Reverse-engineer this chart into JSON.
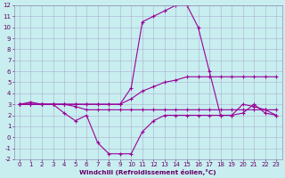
{
  "xlabel": "Windchill (Refroidissement éolien,°C)",
  "x": [
    0,
    1,
    2,
    3,
    4,
    5,
    6,
    7,
    8,
    9,
    10,
    11,
    12,
    13,
    14,
    15,
    16,
    17,
    18,
    19,
    20,
    21,
    22,
    23
  ],
  "y_peak": [
    3.0,
    3.2,
    3.0,
    3.0,
    3.0,
    3.0,
    3.0,
    3.0,
    3.0,
    3.0,
    4.5,
    10.5,
    11.0,
    11.5,
    12.0,
    12.0,
    10.0,
    6.0,
    2.0,
    2.0,
    2.2,
    3.0,
    2.2,
    2.0
  ],
  "y_rise": [
    3.0,
    3.0,
    3.0,
    3.0,
    3.0,
    3.0,
    3.0,
    3.0,
    3.0,
    3.0,
    3.5,
    4.2,
    4.6,
    5.0,
    5.2,
    5.5,
    5.5,
    5.5,
    5.5,
    5.5,
    5.5,
    5.5,
    5.5,
    5.5
  ],
  "y_dip": [
    3.0,
    3.0,
    3.0,
    3.0,
    2.2,
    1.5,
    2.0,
    -0.5,
    -1.5,
    -1.5,
    -1.5,
    0.5,
    1.5,
    2.0,
    2.0,
    2.0,
    2.0,
    2.0,
    2.0,
    2.0,
    3.0,
    2.8,
    2.5,
    2.0
  ],
  "y_flat": [
    3.0,
    3.0,
    3.0,
    3.0,
    3.0,
    2.8,
    2.5,
    2.5,
    2.5,
    2.5,
    2.5,
    2.5,
    2.5,
    2.5,
    2.5,
    2.5,
    2.5,
    2.5,
    2.5,
    2.5,
    2.5,
    2.5,
    2.5,
    2.5
  ],
  "line_color": "#990099",
  "bg_color": "#c8eef0",
  "grid_color": "#aaaacc",
  "ylim": [
    -2,
    12
  ],
  "xlim": [
    0,
    23
  ],
  "yticks": [
    -2,
    -1,
    0,
    1,
    2,
    3,
    4,
    5,
    6,
    7,
    8,
    9,
    10,
    11,
    12
  ],
  "xticks": [
    0,
    1,
    2,
    3,
    4,
    5,
    6,
    7,
    8,
    9,
    10,
    11,
    12,
    13,
    14,
    15,
    16,
    17,
    18,
    19,
    20,
    21,
    22,
    23
  ]
}
